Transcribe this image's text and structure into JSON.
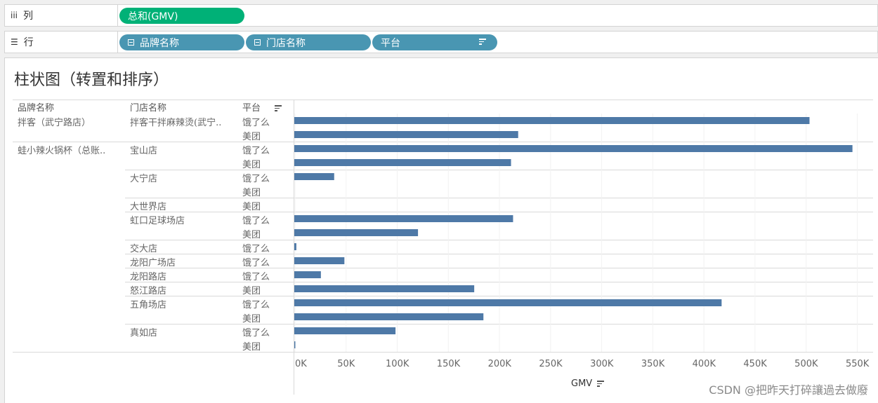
{
  "shelves": {
    "columns": {
      "icon": "iii",
      "label": "列",
      "pills": [
        {
          "label": "总和(GMV)",
          "color": "#00b177"
        }
      ]
    },
    "rows": {
      "icon": "☰",
      "label": "行",
      "pills": [
        {
          "label": "品牌名称",
          "color": "#4996b2"
        },
        {
          "label": "门店名称",
          "color": "#4996b2"
        },
        {
          "label": "平台",
          "color": "#4996b2"
        }
      ]
    }
  },
  "headers": {
    "brand": "品牌名称",
    "store": "门店名称",
    "platform": "平台"
  },
  "chart_data": {
    "type": "bar",
    "orientation": "horizontal",
    "title": "柱状图（转置和排序）",
    "xlabel": "GMV",
    "xlim": [
      0,
      560000
    ],
    "xticks": [
      0,
      50000,
      100000,
      150000,
      200000,
      250000,
      300000,
      350000,
      400000,
      450000,
      500000,
      550000
    ],
    "xtick_labels": [
      "0K",
      "50K",
      "100K",
      "150K",
      "200K",
      "250K",
      "300K",
      "350K",
      "400K",
      "450K",
      "500K",
      "550K"
    ],
    "bar_color": "#4e79a7",
    "grid": true,
    "rows": [
      {
        "brand": "拌客（武宁路店）",
        "store": "拌客干拌麻辣烫(武宁..",
        "platform": "饿了么",
        "value": 504000
      },
      {
        "brand": "",
        "store": "",
        "platform": "美团",
        "value": 219000
      },
      {
        "brand": "蛙小辣火锅杯（总账..",
        "store": "宝山店",
        "platform": "饿了么",
        "value": 546000
      },
      {
        "brand": "",
        "store": "",
        "platform": "美团",
        "value": 212000
      },
      {
        "brand": "",
        "store": "大宁店",
        "platform": "饿了么",
        "value": 39000
      },
      {
        "brand": "",
        "store": "",
        "platform": "美团",
        "value": 0
      },
      {
        "brand": "",
        "store": "大世界店",
        "platform": "美团",
        "value": 0
      },
      {
        "brand": "",
        "store": "虹口足球场店",
        "platform": "饿了么",
        "value": 214000
      },
      {
        "brand": "",
        "store": "",
        "platform": "美团",
        "value": 121000
      },
      {
        "brand": "",
        "store": "交大店",
        "platform": "饿了么",
        "value": 2000
      },
      {
        "brand": "",
        "store": "龙阳广场店",
        "platform": "饿了么",
        "value": 49000
      },
      {
        "brand": "",
        "store": "龙阳路店",
        "platform": "饿了么",
        "value": 26000
      },
      {
        "brand": "",
        "store": "怒江路店",
        "platform": "美团",
        "value": 176000
      },
      {
        "brand": "",
        "store": "五角场店",
        "platform": "饿了么",
        "value": 418000
      },
      {
        "brand": "",
        "store": "",
        "platform": "美团",
        "value": 185000
      },
      {
        "brand": "",
        "store": "真如店",
        "platform": "饿了么",
        "value": 99000
      },
      {
        "brand": "",
        "store": "",
        "platform": "美团",
        "value": 1000
      }
    ]
  },
  "watermark": "CSDN @把昨天打碎讓過去做廢"
}
